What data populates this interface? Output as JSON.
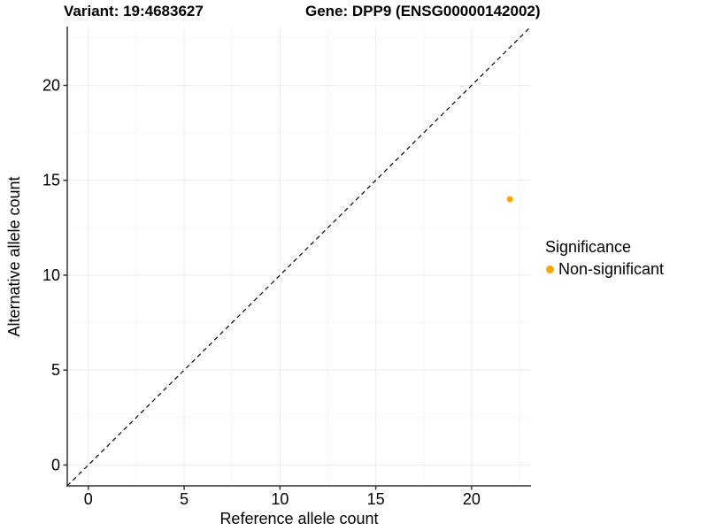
{
  "chart_data": {
    "type": "scatter",
    "title_variant": "Variant: 19:4683627",
    "title_gene": "Gene: DPP9 (ENSG00000142002)",
    "xlabel": "Reference allele count",
    "ylabel": "Alternative allele count",
    "xlim": [
      -1.1,
      23.1
    ],
    "ylim": [
      -1.1,
      23.1
    ],
    "x_ticks": [
      0,
      5,
      10,
      15,
      20
    ],
    "y_ticks": [
      0,
      5,
      10,
      15,
      20
    ],
    "grid": {
      "major": true,
      "minor": true,
      "major_color": "#ebebeb",
      "minor_color": "#f6f6f6",
      "background": "#ffffff"
    },
    "identity_line": {
      "shown": true,
      "style": "dashed",
      "color": "#000000",
      "slope": 1,
      "intercept": 0
    },
    "points": [
      {
        "x": 22,
        "y": 14,
        "significance": "Non-significant",
        "color": "#FFA500"
      }
    ],
    "legend": {
      "title": "Significance",
      "position": "right",
      "items": [
        {
          "label": "Non-significant",
          "color": "#FFA500"
        }
      ]
    },
    "axis_color": "#333333",
    "text_color": "#000000"
  }
}
